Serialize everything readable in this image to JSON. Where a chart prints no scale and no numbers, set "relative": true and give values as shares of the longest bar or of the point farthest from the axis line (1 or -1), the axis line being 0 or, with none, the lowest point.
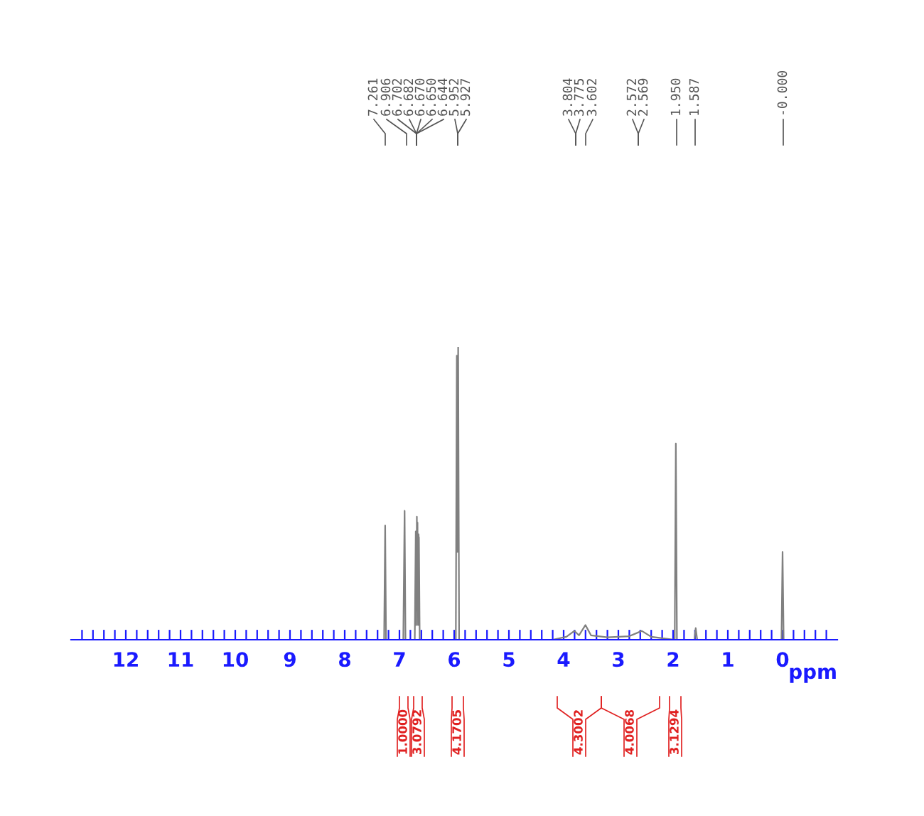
{
  "chart_data": {
    "type": "line",
    "relative": true,
    "xlabel": "ppm",
    "xlim": [
      13,
      -1
    ],
    "xticks": [
      12,
      11,
      10,
      9,
      8,
      7,
      6,
      5,
      4,
      3,
      2,
      1,
      0,
      {
        "value": 12.8,
        "label": null
      },
      {
        "value": 12.6,
        "label": null
      },
      {
        "value": 12.4,
        "label": null
      },
      {
        "value": 12.2,
        "label": null
      },
      {
        "value": 11.8,
        "label": null
      },
      {
        "value": 11.6,
        "label": null
      },
      {
        "value": 11.4,
        "label": null
      },
      {
        "value": 11.2,
        "label": null
      },
      {
        "value": 10.8,
        "label": null
      },
      {
        "value": 10.6,
        "label": null
      },
      {
        "value": 10.4,
        "label": null
      },
      {
        "value": 10.2,
        "label": null
      },
      {
        "value": 9.8,
        "label": null
      },
      {
        "value": 9.6,
        "label": null
      },
      {
        "value": 9.4,
        "label": null
      },
      {
        "value": 9.2,
        "label": null
      },
      {
        "value": 8.8,
        "label": null
      },
      {
        "value": 8.6,
        "label": null
      },
      {
        "value": 8.4,
        "label": null
      },
      {
        "value": 8.2,
        "label": null
      },
      {
        "value": 7.8,
        "label": null
      },
      {
        "value": 7.6,
        "label": null
      },
      {
        "value": 7.4,
        "label": null
      },
      {
        "value": 7.2,
        "label": null
      },
      {
        "value": 6.8,
        "label": null
      },
      {
        "value": 6.6,
        "label": null
      },
      {
        "value": 6.4,
        "label": null
      },
      {
        "value": 6.2,
        "label": null
      },
      {
        "value": 5.8,
        "label": null
      },
      {
        "value": 5.6,
        "label": null
      },
      {
        "value": 5.4,
        "label": null
      },
      {
        "value": 5.2,
        "label": null
      },
      {
        "value": 4.8,
        "label": null
      },
      {
        "value": 4.6,
        "label": null
      },
      {
        "value": 4.4,
        "label": null
      },
      {
        "value": 4.2,
        "label": null
      },
      {
        "value": 3.8,
        "label": null
      },
      {
        "value": 3.6,
        "label": null
      },
      {
        "value": 3.4,
        "label": null
      },
      {
        "value": 3.2,
        "label": null
      },
      {
        "value": 2.8,
        "label": null
      },
      {
        "value": 2.6,
        "label": null
      },
      {
        "value": 2.4,
        "label": null
      },
      {
        "value": 2.2,
        "label": null
      },
      {
        "value": 1.8,
        "label": null
      },
      {
        "value": 1.6,
        "label": null
      },
      {
        "value": 1.4,
        "label": null
      },
      {
        "value": 1.2,
        "label": null
      },
      {
        "value": 0.8,
        "label": null
      },
      {
        "value": 0.6,
        "label": null
      },
      {
        "value": 0.4,
        "label": null
      },
      {
        "value": 0.2,
        "label": null
      },
      {
        "value": -0.2,
        "label": null
      },
      {
        "value": -0.4,
        "label": null
      },
      {
        "value": -0.6,
        "label": null
      },
      {
        "value": -0.8,
        "label": null
      }
    ],
    "series": [
      {
        "color": "#808080",
        "x": [
          13.0,
          7.28,
          7.261,
          7.245,
          6.93,
          6.906,
          6.89,
          6.72,
          6.702,
          6.692,
          6.682,
          6.676,
          6.67,
          6.66,
          6.65,
          6.647,
          6.644,
          6.63,
          5.97,
          5.952,
          5.94,
          5.927,
          5.91,
          4.2,
          3.95,
          3.804,
          3.775,
          3.72,
          3.602,
          3.5,
          3.2,
          2.8,
          2.572,
          2.4,
          2.2,
          1.97,
          1.95,
          1.93,
          1.61,
          1.587,
          1.56,
          0.02,
          0.0,
          -0.02,
          -1.0
        ],
        "values": [
          0,
          0,
          0.39,
          0,
          0,
          0.44,
          0,
          0,
          0.37,
          0.05,
          0.42,
          0.1,
          0.4,
          0.05,
          0.36,
          0.3,
          0.35,
          0,
          0,
          0.97,
          0.3,
          1.0,
          0,
          0,
          0.01,
          0.03,
          0.025,
          0.015,
          0.05,
          0.015,
          0.008,
          0.012,
          0.03,
          0.01,
          0.005,
          0,
          0.67,
          0,
          0,
          0.04,
          0,
          0,
          0.3,
          0,
          0
        ]
      }
    ],
    "annotations": [
      "7.261",
      "6.906",
      "6.702",
      "6.682",
      "6.670",
      "6.650",
      "6.644",
      "5.952",
      "5.927",
      "3.804",
      "3.775",
      "3.602",
      "2.572",
      "2.569",
      "1.950",
      "1.587",
      "-0.000",
      "1.0000",
      "3.0792",
      "4.1705",
      "4.3002",
      "4.0068",
      "3.1294"
    ]
  }
}
